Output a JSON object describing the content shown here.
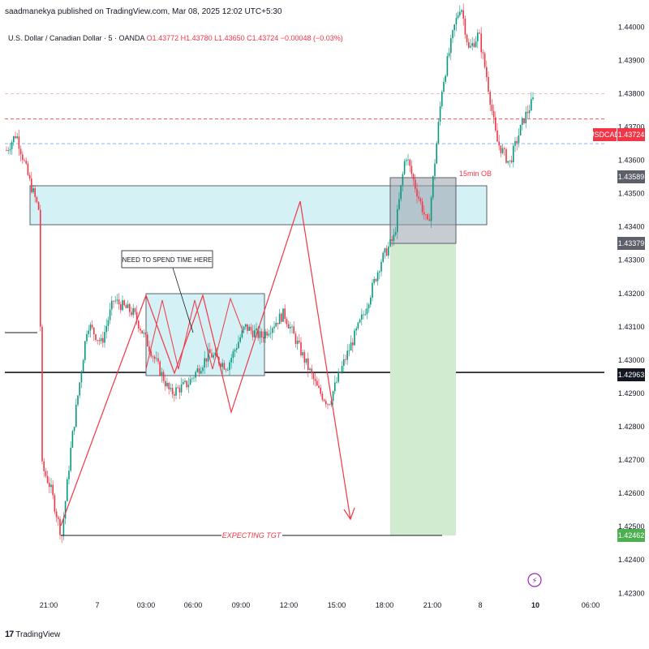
{
  "header": {
    "published": "saadmanekya published on TradingView.com, Mar 08, 2025 12:02 UTC+5:30",
    "instrument": "U.S. Dollar / Canadian Dollar · 5 · OANDA",
    "ohlc": "O1.43772 H1.43780 L1.43650 C1.43724 −0.00048 (−0.03%)"
  },
  "footer": {
    "logo": "17",
    "brand": "TradingView"
  },
  "colors": {
    "up": "#089981",
    "down": "#f23645",
    "zone_fill": "#d4f1f6",
    "zone_border": "#5d606b",
    "target_fill": "#d0ebd0",
    "ob_fill": "#9aa0ad",
    "path": "#f23645"
  },
  "chart_data": {
    "type": "candlestick",
    "symbol": "USDCAD",
    "timeframe": "5",
    "y_axis": {
      "range": [
        1.4223,
        1.4413
      ],
      "ticks": [
        "1.44000",
        "1.43900",
        "1.43800",
        "1.43700",
        "1.43600",
        "1.43500",
        "1.43400",
        "1.43300",
        "1.43200",
        "1.43100",
        "1.43000",
        "1.42900",
        "1.42800",
        "1.42700",
        "1.42600",
        "1.42500",
        "1.42400",
        "1.42300"
      ]
    },
    "x_axis": {
      "ticks": [
        "21:00",
        "7",
        "03:00",
        "06:00",
        "09:00",
        "12:00",
        "15:00",
        "18:00",
        "21:00",
        "8",
        "10",
        "06:00"
      ],
      "bold_ticks": [
        "10"
      ]
    },
    "price_labels": [
      {
        "symbol": "USDCAD",
        "value": "1.43724",
        "color": "#f23645"
      },
      {
        "value": "1.43589",
        "color": "#5d606b"
      },
      {
        "value": "1.43379",
        "color": "#5d606b"
      },
      {
        "value": "1.42963",
        "color": "#131722"
      },
      {
        "value": "1.42462",
        "color": "#4caf50"
      }
    ],
    "horizontal_lines": [
      {
        "price": 1.438,
        "style": "dashed",
        "color": "#f7a3a9"
      },
      {
        "price": 1.43724,
        "style": "dashed",
        "color": "#f23645"
      },
      {
        "price": 1.4365,
        "style": "dashed",
        "color": "#7ea7e8"
      },
      {
        "price": 1.42963,
        "style": "solid",
        "color": "#131722"
      }
    ],
    "zones": [
      {
        "name": "supply-zone",
        "top": 1.4356,
        "bottom": 1.43435
      },
      {
        "name": "range-zone",
        "top": 1.43225,
        "bottom": 1.4296
      }
    ],
    "order_block": {
      "label": "15min OB",
      "top": 1.43589,
      "bottom": 1.43379
    },
    "target_box": {
      "top": 1.43379,
      "bottom": 1.42462
    },
    "annotations": [
      {
        "text": "NEED TO SPEND TIME HERE"
      },
      {
        "text": "EXPECTING TGT"
      }
    ],
    "ohlc_sample": [
      {
        "time": "21:00",
        "open": 1.4361,
        "high": 1.4369,
        "low": 1.4346,
        "close": 1.4348
      },
      {
        "time": "22:30",
        "open": 1.4342,
        "high": 1.4344,
        "low": 1.4243,
        "close": 1.4247
      },
      {
        "time": "03:00",
        "open": 1.4308,
        "high": 1.4322,
        "low": 1.4292,
        "close": 1.43
      },
      {
        "time": "06:00",
        "open": 1.4295,
        "high": 1.4307,
        "low": 1.4288,
        "close": 1.4298
      },
      {
        "time": "09:00",
        "open": 1.4308,
        "high": 1.4316,
        "low": 1.4302,
        "close": 1.4306
      },
      {
        "time": "12:00",
        "open": 1.4315,
        "high": 1.432,
        "low": 1.4305,
        "close": 1.4308
      },
      {
        "time": "15:00",
        "open": 1.4292,
        "high": 1.4299,
        "low": 1.4282,
        "close": 1.4296
      },
      {
        "time": "18:00",
        "open": 1.433,
        "high": 1.434,
        "low": 1.4326,
        "close": 1.4337
      },
      {
        "time": "21:00",
        "open": 1.4378,
        "high": 1.4412,
        "low": 1.4369,
        "close": 1.44
      },
      {
        "time": "10",
        "open": 1.43772,
        "high": 1.4378,
        "low": 1.4365,
        "close": 1.43724
      }
    ]
  }
}
